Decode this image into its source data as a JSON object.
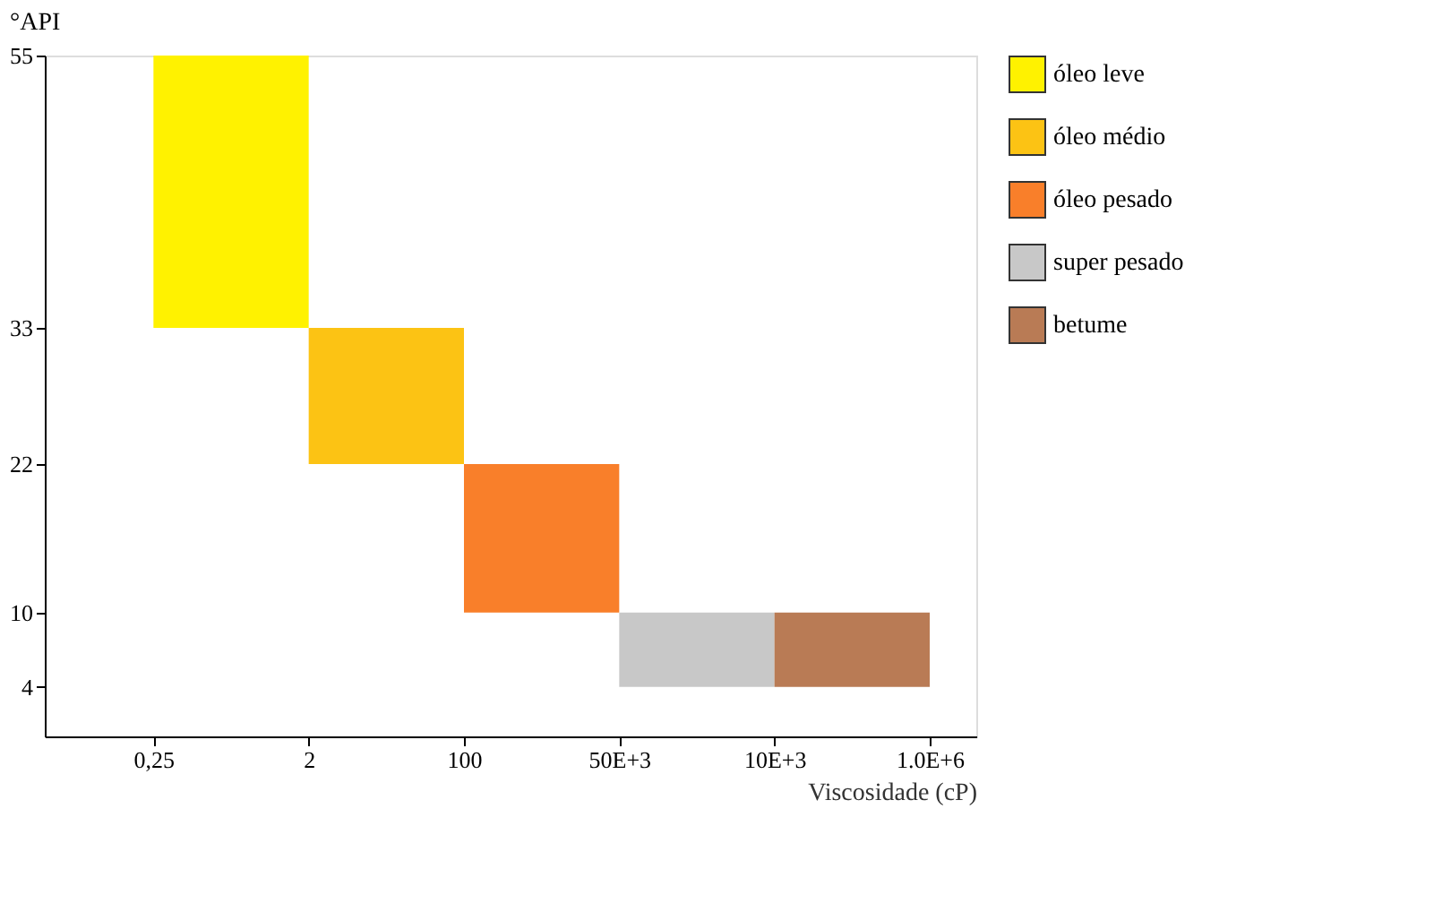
{
  "chart_data": {
    "type": "bar",
    "xlabel": "Viscosidade (cP)",
    "ylabel": "°API",
    "categories": [
      "0,25",
      "2",
      "100",
      "50E+3",
      "10E+3",
      "1.0E+6"
    ],
    "ylim": [
      0,
      55
    ],
    "yticks": [
      4,
      10,
      22,
      33,
      55
    ],
    "series": [
      {
        "name": "óleo leve",
        "color": "#fff200",
        "base": [
          33,
          null,
          null,
          null,
          null,
          null
        ],
        "values": [
          22,
          null,
          null,
          null,
          null,
          null
        ]
      },
      {
        "name": "óleo médio",
        "color": "#fcc314",
        "base": [
          null,
          22,
          null,
          null,
          null,
          null
        ],
        "values": [
          null,
          11,
          null,
          null,
          null,
          null
        ]
      },
      {
        "name": "óleo pesado",
        "color": "#f97f2a",
        "base": [
          null,
          null,
          10,
          null,
          null,
          null
        ],
        "values": [
          null,
          null,
          12,
          null,
          null,
          null
        ]
      },
      {
        "name": "super pesado",
        "color": "#c8c8c8",
        "base": [
          null,
          null,
          null,
          4,
          null,
          null
        ],
        "values": [
          null,
          null,
          null,
          6,
          null,
          null
        ]
      },
      {
        "name": "betume",
        "color": "#b97b55",
        "base": [
          null,
          null,
          null,
          null,
          4,
          null
        ],
        "values": [
          null,
          null,
          null,
          null,
          6,
          null
        ]
      }
    ],
    "grid": false,
    "legend": "right"
  }
}
